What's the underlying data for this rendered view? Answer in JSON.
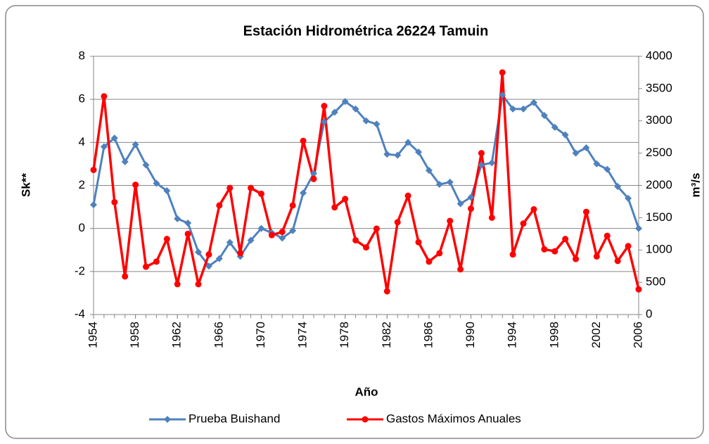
{
  "chart_data": {
    "type": "line",
    "title": "Estación Hidrométrica 26224 Tamuin",
    "x_label": "Año",
    "y_label": "Sk**",
    "y2_label": "m³/s",
    "x": [
      1954,
      1955,
      1956,
      1957,
      1958,
      1959,
      1960,
      1961,
      1962,
      1963,
      1964,
      1965,
      1966,
      1967,
      1968,
      1969,
      1970,
      1971,
      1972,
      1973,
      1974,
      1975,
      1976,
      1977,
      1978,
      1979,
      1980,
      1981,
      1982,
      1983,
      1984,
      1985,
      1986,
      1987,
      1988,
      1989,
      1990,
      1991,
      1992,
      1993,
      1994,
      1995,
      1996,
      1997,
      1998,
      1999,
      2000,
      2001,
      2002,
      2003,
      2004,
      2005,
      2006
    ],
    "xlim": [
      1954,
      2006
    ],
    "xticks": [
      1954,
      1958,
      1962,
      1966,
      1970,
      1974,
      1978,
      1982,
      1986,
      1990,
      1994,
      1998,
      2002,
      2006
    ],
    "ylim": [
      -4,
      8
    ],
    "yticks": [
      -4,
      -2,
      0,
      2,
      4,
      6,
      8
    ],
    "y2lim": [
      0,
      4000
    ],
    "y2ticks": [
      0,
      500,
      1000,
      1500,
      2000,
      2500,
      3000,
      3500,
      4000
    ],
    "grid": true,
    "legend": "bottom",
    "series": [
      {
        "name": "Prueba Buishand",
        "color": "#4f81bd",
        "marker": "diamond",
        "values": [
          1.1,
          3.8,
          4.2,
          3.1,
          3.9,
          2.95,
          2.1,
          1.75,
          0.45,
          0.25,
          -1.1,
          -1.75,
          -1.4,
          -0.65,
          -1.3,
          -0.55,
          0.0,
          -0.2,
          -0.45,
          -0.1,
          1.65,
          2.55,
          4.95,
          5.4,
          5.9,
          5.55,
          5.0,
          4.85,
          3.45,
          3.4,
          4.0,
          3.55,
          2.7,
          2.05,
          2.15,
          1.15,
          1.45,
          2.95,
          3.05,
          6.2,
          5.55,
          5.55,
          5.85,
          5.25,
          4.7,
          4.35,
          3.5,
          3.75,
          3.0,
          2.75,
          1.95,
          1.4,
          0.0
        ]
      },
      {
        "name": "Gastos Máximos Anuales",
        "color": "#ff0000",
        "marker": "circle",
        "axis": "y2",
        "values": [
          2240,
          3380,
          1740,
          590,
          2010,
          740,
          820,
          1170,
          470,
          1250,
          470,
          930,
          1690,
          1960,
          950,
          1960,
          1870,
          1230,
          1280,
          1690,
          2690,
          2100,
          3230,
          1660,
          1790,
          1150,
          1040,
          1330,
          360,
          1430,
          1840,
          1120,
          820,
          950,
          1450,
          700,
          1640,
          2500,
          1500,
          3750,
          930,
          1410,
          1630,
          1010,
          980,
          1170,
          860,
          1590,
          900,
          1220,
          830,
          1060,
          390
        ]
      }
    ]
  }
}
